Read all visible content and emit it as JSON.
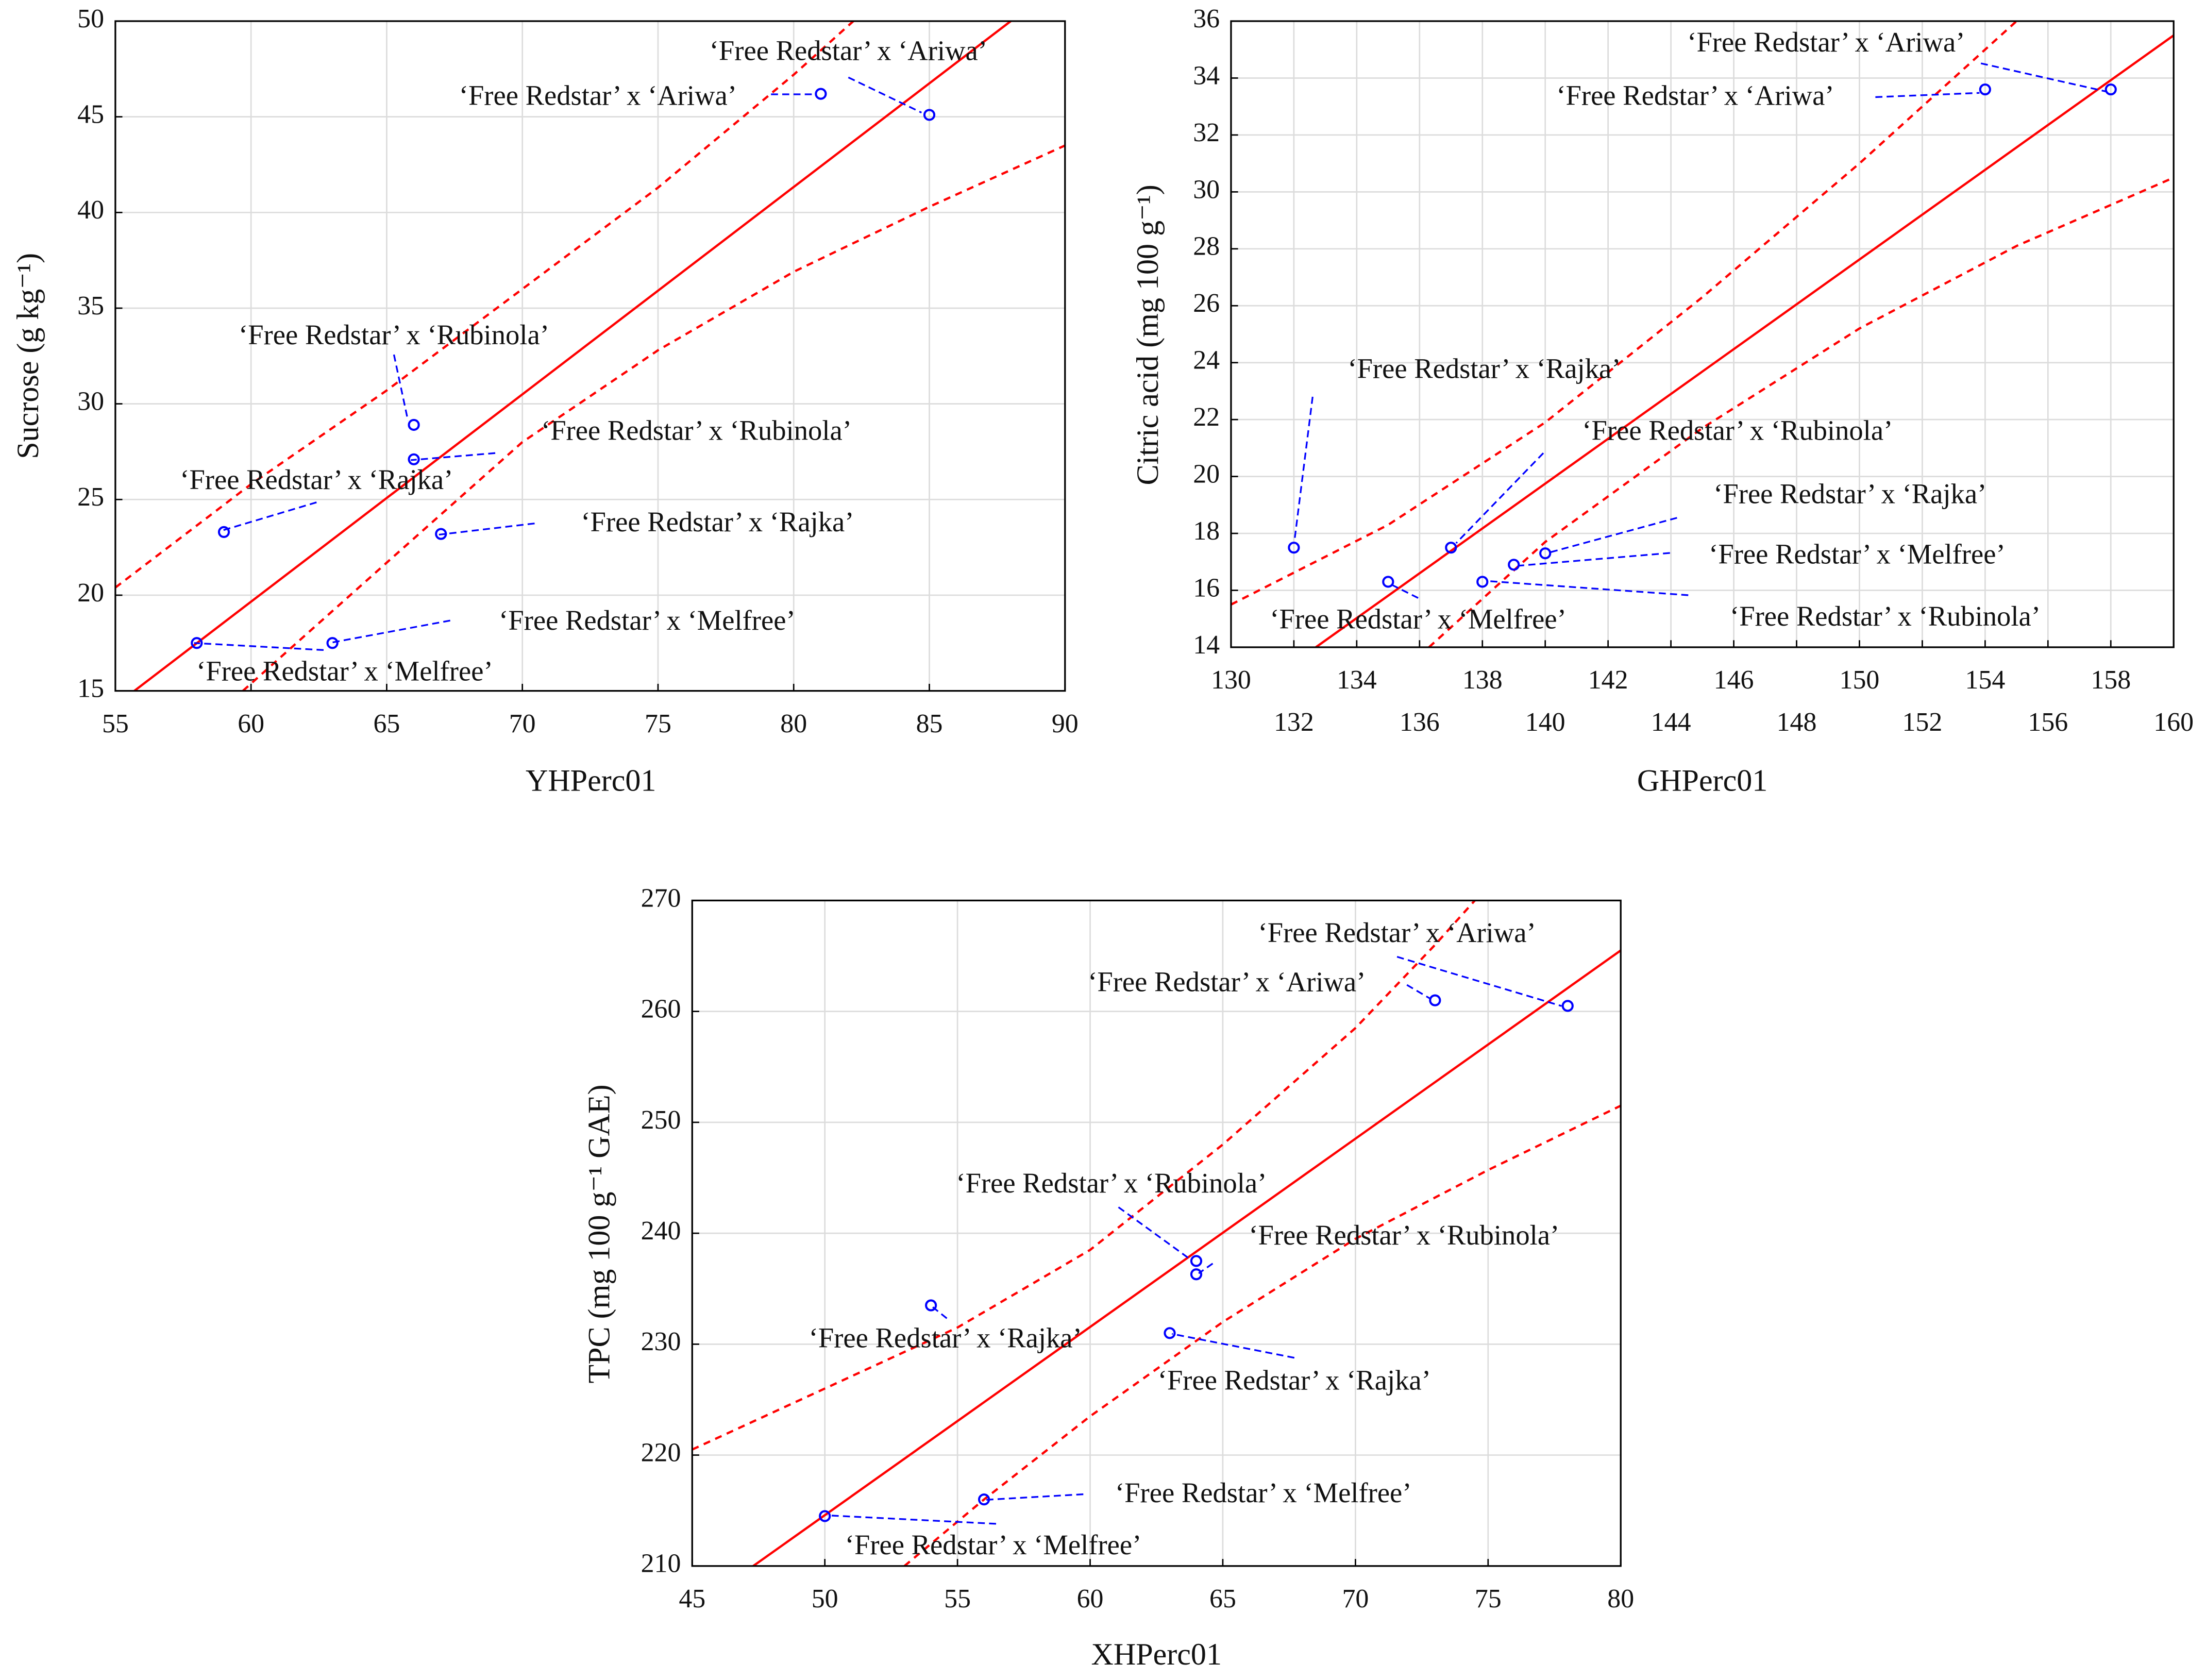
{
  "chart_data": [
    {
      "type": "scatter",
      "xlabel": "YHPerc01",
      "ylabel": "Sucrose (g kg⁻¹)",
      "x": [
        85,
        81,
        66,
        66,
        59,
        67,
        58,
        63
      ],
      "values": [
        45.1,
        46.2,
        28.9,
        27.1,
        23.3,
        23.2,
        17.5,
        17.5
      ],
      "point_labels": [
        "‘Free Redstar’ x ‘Ariwa’",
        "‘Free Redstar’ x ‘Ariwa’",
        "‘Free Redstar’ x ‘Rubinola’",
        "‘Free Redstar’ x ‘Rubinola’",
        "‘Free Redstar’ x ‘Rajka’",
        "‘Free Redstar’ x ‘Rajka’",
        "‘Free Redstar’ x ‘Melfree’",
        "‘Free Redstar’ x ‘Melfree’"
      ],
      "fit": {
        "x": [
          55.7,
          88
        ],
        "y": [
          15,
          50
        ]
      },
      "confidence_upper": {
        "x": [
          55,
          60,
          65,
          70,
          75,
          80,
          82.2
        ],
        "y": [
          20.4,
          25.8,
          30.7,
          36.0,
          41.3,
          47.2,
          50
        ]
      },
      "confidence_lower": {
        "x": [
          59.7,
          65,
          70,
          75,
          80,
          85,
          90
        ],
        "y": [
          15,
          21.7,
          28.0,
          32.8,
          36.9,
          40.3,
          43.5
        ]
      },
      "color": "#0000ff",
      "line_color": "#ff0000",
      "xlim": [
        55,
        90
      ],
      "xticks": [
        55,
        60,
        65,
        70,
        75,
        80,
        85,
        90
      ],
      "ylim": [
        15,
        50
      ],
      "yticks": [
        15,
        20,
        25,
        30,
        35,
        40,
        45,
        50
      ],
      "grid": true
    },
    {
      "type": "scatter",
      "xlabel": "GHPerc01",
      "ylabel": "Citric acid (mg 100 g⁻¹)",
      "x": [
        158,
        154,
        132,
        137,
        135,
        139,
        140,
        138
      ],
      "values": [
        33.6,
        33.6,
        17.5,
        17.5,
        16.3,
        16.9,
        17.3,
        16.3
      ],
      "point_labels": [
        "‘Free Redstar’ x ‘Ariwa’",
        "‘Free Redstar’ x ‘Ariwa’",
        "‘Free Redstar’ x ‘Rajka’",
        "‘Free Redstar’ x ‘Rubinola’",
        "‘Free Redstar’ x ‘Melfree’",
        "‘Free Redstar’ x ‘Melfree’",
        "‘Free Redstar’ x ‘Rajka’",
        "‘Free Redstar’ x ‘Rubinola’"
      ],
      "fit": {
        "x": [
          132.7,
          160
        ],
        "y": [
          14,
          35.5
        ]
      },
      "confidence_upper": {
        "x": [
          130,
          135,
          140,
          145,
          150,
          155
        ],
        "y": [
          15.5,
          18.3,
          21.9,
          26.3,
          31.0,
          36.0
        ]
      },
      "confidence_lower": {
        "x": [
          136.3,
          140,
          145,
          150,
          155,
          160
        ],
        "y": [
          14,
          17.7,
          21.7,
          25.2,
          28.1,
          30.5
        ]
      },
      "color": "#0000ff",
      "line_color": "#ff0000",
      "xlim": [
        130,
        160
      ],
      "xticks": [
        130,
        132,
        134,
        136,
        138,
        140,
        142,
        144,
        146,
        148,
        150,
        152,
        154,
        156,
        158,
        160
      ],
      "ylim": [
        14,
        36
      ],
      "yticks": [
        14,
        16,
        18,
        20,
        22,
        24,
        26,
        28,
        30,
        32,
        34,
        36
      ],
      "grid": true
    },
    {
      "type": "scatter",
      "xlabel": "XHPerc01",
      "ylabel": "TPC (mg 100 g⁻¹ GAE)",
      "x": [
        78,
        73,
        64,
        64,
        54,
        63,
        50,
        56
      ],
      "values": [
        260.5,
        261,
        237.5,
        236.3,
        233.5,
        231,
        214.5,
        216
      ],
      "point_labels": [
        "‘Free Redstar’ x ‘Ariwa’",
        "‘Free Redstar’ x ‘Ariwa’",
        "‘Free Redstar’ x ‘Rubinola’",
        "‘Free Redstar’ x ‘Rubinola’",
        "‘Free Redstar’ x ‘Rajka’",
        "‘Free Redstar’ x ‘Rajka’",
        "‘Free Redstar’ x ‘Melfree’",
        "‘Free Redstar’ x ‘Melfree’"
      ],
      "fit": {
        "x": [
          47.3,
          80
        ],
        "y": [
          210,
          265.5
        ]
      },
      "confidence_upper": {
        "x": [
          45,
          50,
          55,
          60,
          65,
          70,
          73,
          74.5
        ],
        "y": [
          220.5,
          226,
          231.5,
          238.5,
          248,
          258.5,
          266,
          270
        ]
      },
      "confidence_lower": {
        "x": [
          53,
          56,
          60,
          65,
          70,
          75,
          80
        ],
        "y": [
          210,
          216,
          223.5,
          232,
          239.5,
          245.7,
          251.5
        ]
      },
      "color": "#0000ff",
      "line_color": "#ff0000",
      "xlim": [
        45,
        80
      ],
      "xticks": [
        45,
        50,
        55,
        60,
        65,
        70,
        75,
        80
      ],
      "ylim": [
        210,
        270
      ],
      "yticks": [
        210,
        220,
        230,
        240,
        250,
        260,
        270
      ],
      "grid": true
    }
  ]
}
